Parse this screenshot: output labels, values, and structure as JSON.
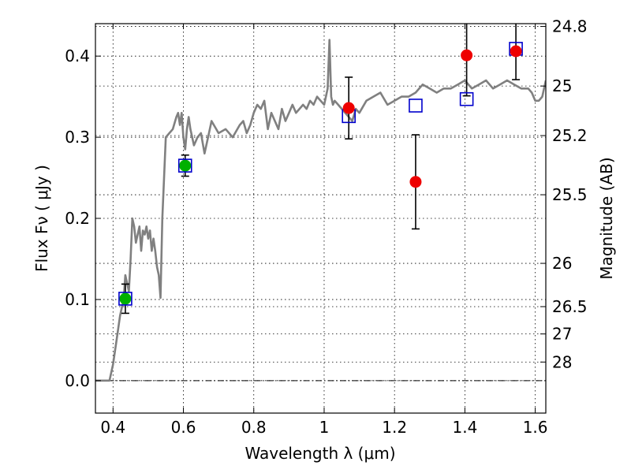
{
  "chart_data": {
    "type": "scatter",
    "xlabel": "Wavelength  λ (μm)",
    "ylabel": "Flux  Fν  ( μJy )",
    "ylabel_right": "Magnitude (AB)",
    "xlim": [
      0.35,
      1.63
    ],
    "ylim": [
      -0.04,
      0.44
    ],
    "x_ticks": [
      0.4,
      0.6,
      0.8,
      1.0,
      1.2,
      1.4,
      1.6
    ],
    "x_tick_labels": [
      "0.4",
      "0.6",
      "0.8",
      "1",
      "1.2",
      "1.4",
      "1.6"
    ],
    "y_ticks": [
      0.0,
      0.1,
      0.2,
      0.3,
      0.4
    ],
    "y_tick_labels": [
      "0.0",
      "0.1",
      "0.2",
      "0.3",
      "0.4"
    ],
    "right_ticks": [
      24.8,
      25,
      25.2,
      25.5,
      26,
      26.5,
      27,
      28
    ],
    "right_tick_labels": [
      "24.8",
      "25",
      "25.2",
      "25.5",
      "26",
      "26.5",
      "27",
      "28"
    ],
    "grid": true,
    "zero_line": true,
    "colors": {
      "spectrum": "#808080",
      "model_squares": "#0000cc",
      "green_points": "#00b000",
      "red_points": "#ee0000",
      "errorbars": "#000000"
    },
    "series": [
      {
        "kind": "line",
        "x": [
          0.35,
          0.39,
          0.4,
          0.41,
          0.42,
          0.43,
          0.435,
          0.44,
          0.445,
          0.45,
          0.455,
          0.46,
          0.465,
          0.47,
          0.475,
          0.48,
          0.485,
          0.49,
          0.495,
          0.5,
          0.505,
          0.51,
          0.515,
          0.52,
          0.525,
          0.53,
          0.535,
          0.54,
          0.55,
          0.56,
          0.57,
          0.58,
          0.585,
          0.59,
          0.595,
          0.6,
          0.605,
          0.61,
          0.615,
          0.62,
          0.63,
          0.64,
          0.65,
          0.66,
          0.67,
          0.68,
          0.7,
          0.72,
          0.74,
          0.76,
          0.77,
          0.78,
          0.79,
          0.8,
          0.81,
          0.82,
          0.83,
          0.84,
          0.85,
          0.86,
          0.87,
          0.88,
          0.89,
          0.9,
          0.91,
          0.92,
          0.93,
          0.94,
          0.95,
          0.96,
          0.97,
          0.98,
          0.99,
          1.0,
          1.01,
          1.015,
          1.02,
          1.025,
          1.03,
          1.04,
          1.05,
          1.06,
          1.07,
          1.08,
          1.09,
          1.1,
          1.12,
          1.14,
          1.16,
          1.18,
          1.2,
          1.22,
          1.24,
          1.26,
          1.28,
          1.3,
          1.32,
          1.34,
          1.36,
          1.38,
          1.4,
          1.42,
          1.44,
          1.46,
          1.48,
          1.5,
          1.52,
          1.54,
          1.56,
          1.58,
          1.59,
          1.6,
          1.61,
          1.62,
          1.63
        ],
        "y": [
          0.0,
          0.0,
          0.02,
          0.05,
          0.08,
          0.1,
          0.13,
          0.12,
          0.11,
          0.15,
          0.2,
          0.19,
          0.17,
          0.18,
          0.19,
          0.16,
          0.185,
          0.18,
          0.19,
          0.175,
          0.185,
          0.16,
          0.175,
          0.16,
          0.14,
          0.13,
          0.102,
          0.2,
          0.3,
          0.305,
          0.31,
          0.325,
          0.33,
          0.315,
          0.33,
          0.3,
          0.285,
          0.31,
          0.325,
          0.31,
          0.29,
          0.3,
          0.305,
          0.28,
          0.3,
          0.32,
          0.305,
          0.31,
          0.3,
          0.315,
          0.32,
          0.305,
          0.315,
          0.33,
          0.34,
          0.335,
          0.345,
          0.31,
          0.33,
          0.32,
          0.31,
          0.335,
          0.32,
          0.33,
          0.34,
          0.33,
          0.335,
          0.34,
          0.335,
          0.345,
          0.34,
          0.35,
          0.345,
          0.34,
          0.36,
          0.42,
          0.35,
          0.34,
          0.345,
          0.34,
          0.335,
          0.33,
          0.325,
          0.32,
          0.335,
          0.33,
          0.345,
          0.35,
          0.355,
          0.34,
          0.345,
          0.35,
          0.35,
          0.355,
          0.365,
          0.36,
          0.355,
          0.36,
          0.36,
          0.365,
          0.37,
          0.36,
          0.365,
          0.37,
          0.36,
          0.365,
          0.37,
          0.365,
          0.36,
          0.36,
          0.355,
          0.345,
          0.345,
          0.35,
          0.37
        ]
      },
      {
        "kind": "squares",
        "x": [
          0.435,
          0.605,
          1.07,
          1.26,
          1.405,
          1.545
        ],
        "y": [
          0.101,
          0.265,
          0.326,
          0.339,
          0.347,
          0.409
        ]
      },
      {
        "kind": "green-points",
        "x": [
          0.435,
          0.605
        ],
        "y": [
          0.101,
          0.265
        ],
        "err": [
          0.018,
          0.013
        ]
      },
      {
        "kind": "red-points",
        "x": [
          1.07,
          1.26,
          1.405,
          1.545
        ],
        "y": [
          0.336,
          0.245,
          0.401,
          0.406
        ],
        "err": [
          0.038,
          0.058,
          0.05,
          0.035
        ]
      }
    ]
  }
}
